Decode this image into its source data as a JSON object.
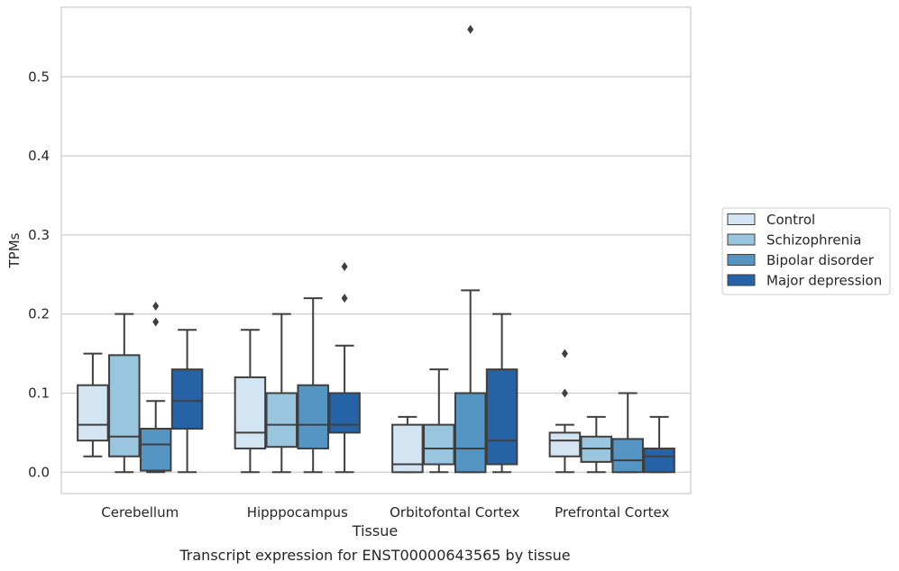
{
  "chart_data": {
    "type": "boxplot",
    "title": "",
    "caption": "Transcript expression for ENST00000643565 by tissue",
    "xlabel": "Tissue",
    "ylabel": "TPMs",
    "ylim": [
      -0.027,
      0.588
    ],
    "yticks": [
      0.0,
      0.1,
      0.2,
      0.3,
      0.4,
      0.5
    ],
    "grid": "horizontal",
    "legend_position": "right",
    "categories": [
      "Cerebellum",
      "Hipppocampus",
      "Orbitofontal Cortex",
      "Prefrontal Cortex"
    ],
    "series": [
      {
        "name": "Control",
        "color": "#d3e5f2",
        "boxes": [
          {
            "whislo": 0.02,
            "q1": 0.04,
            "med": 0.06,
            "q3": 0.11,
            "whishi": 0.15,
            "fliers": []
          },
          {
            "whislo": 0.0,
            "q1": 0.03,
            "med": 0.05,
            "q3": 0.12,
            "whishi": 0.18,
            "fliers": []
          },
          {
            "whislo": 0.0,
            "q1": 0.0,
            "med": 0.01,
            "q3": 0.06,
            "whishi": 0.07,
            "fliers": []
          },
          {
            "whislo": 0.0,
            "q1": 0.02,
            "med": 0.04,
            "q3": 0.05,
            "whishi": 0.06,
            "fliers": [
              0.1,
              0.15
            ]
          }
        ]
      },
      {
        "name": "Schizophrenia",
        "color": "#9ac5de",
        "boxes": [
          {
            "whislo": 0.0,
            "q1": 0.02,
            "med": 0.045,
            "q3": 0.148,
            "whishi": 0.2,
            "fliers": []
          },
          {
            "whislo": 0.0,
            "q1": 0.032,
            "med": 0.06,
            "q3": 0.1,
            "whishi": 0.2,
            "fliers": []
          },
          {
            "whislo": 0.0,
            "q1": 0.01,
            "med": 0.03,
            "q3": 0.06,
            "whishi": 0.13,
            "fliers": []
          },
          {
            "whislo": 0.0,
            "q1": 0.013,
            "med": 0.03,
            "q3": 0.045,
            "whishi": 0.07,
            "fliers": []
          }
        ]
      },
      {
        "name": "Bipolar disorder",
        "color": "#5595c4",
        "boxes": [
          {
            "whislo": 0.0,
            "q1": 0.002,
            "med": 0.035,
            "q3": 0.055,
            "whishi": 0.09,
            "fliers": [
              0.19,
              0.21
            ]
          },
          {
            "whislo": 0.0,
            "q1": 0.03,
            "med": 0.06,
            "q3": 0.11,
            "whishi": 0.22,
            "fliers": []
          },
          {
            "whislo": 0.0,
            "q1": 0.0,
            "med": 0.03,
            "q3": 0.1,
            "whishi": 0.23,
            "fliers": [
              0.56
            ]
          },
          {
            "whislo": 0.0,
            "q1": 0.0,
            "med": 0.015,
            "q3": 0.042,
            "whishi": 0.1,
            "fliers": []
          }
        ]
      },
      {
        "name": "Major depression",
        "color": "#2563a6",
        "boxes": [
          {
            "whislo": 0.0,
            "q1": 0.055,
            "med": 0.09,
            "q3": 0.13,
            "whishi": 0.18,
            "fliers": []
          },
          {
            "whislo": 0.0,
            "q1": 0.05,
            "med": 0.06,
            "q3": 0.1,
            "whishi": 0.16,
            "fliers": [
              0.22,
              0.26
            ]
          },
          {
            "whislo": 0.0,
            "q1": 0.01,
            "med": 0.04,
            "q3": 0.13,
            "whishi": 0.2,
            "fliers": []
          },
          {
            "whislo": 0.0,
            "q1": 0.0,
            "med": 0.02,
            "q3": 0.03,
            "whishi": 0.07,
            "fliers": []
          }
        ]
      }
    ]
  }
}
